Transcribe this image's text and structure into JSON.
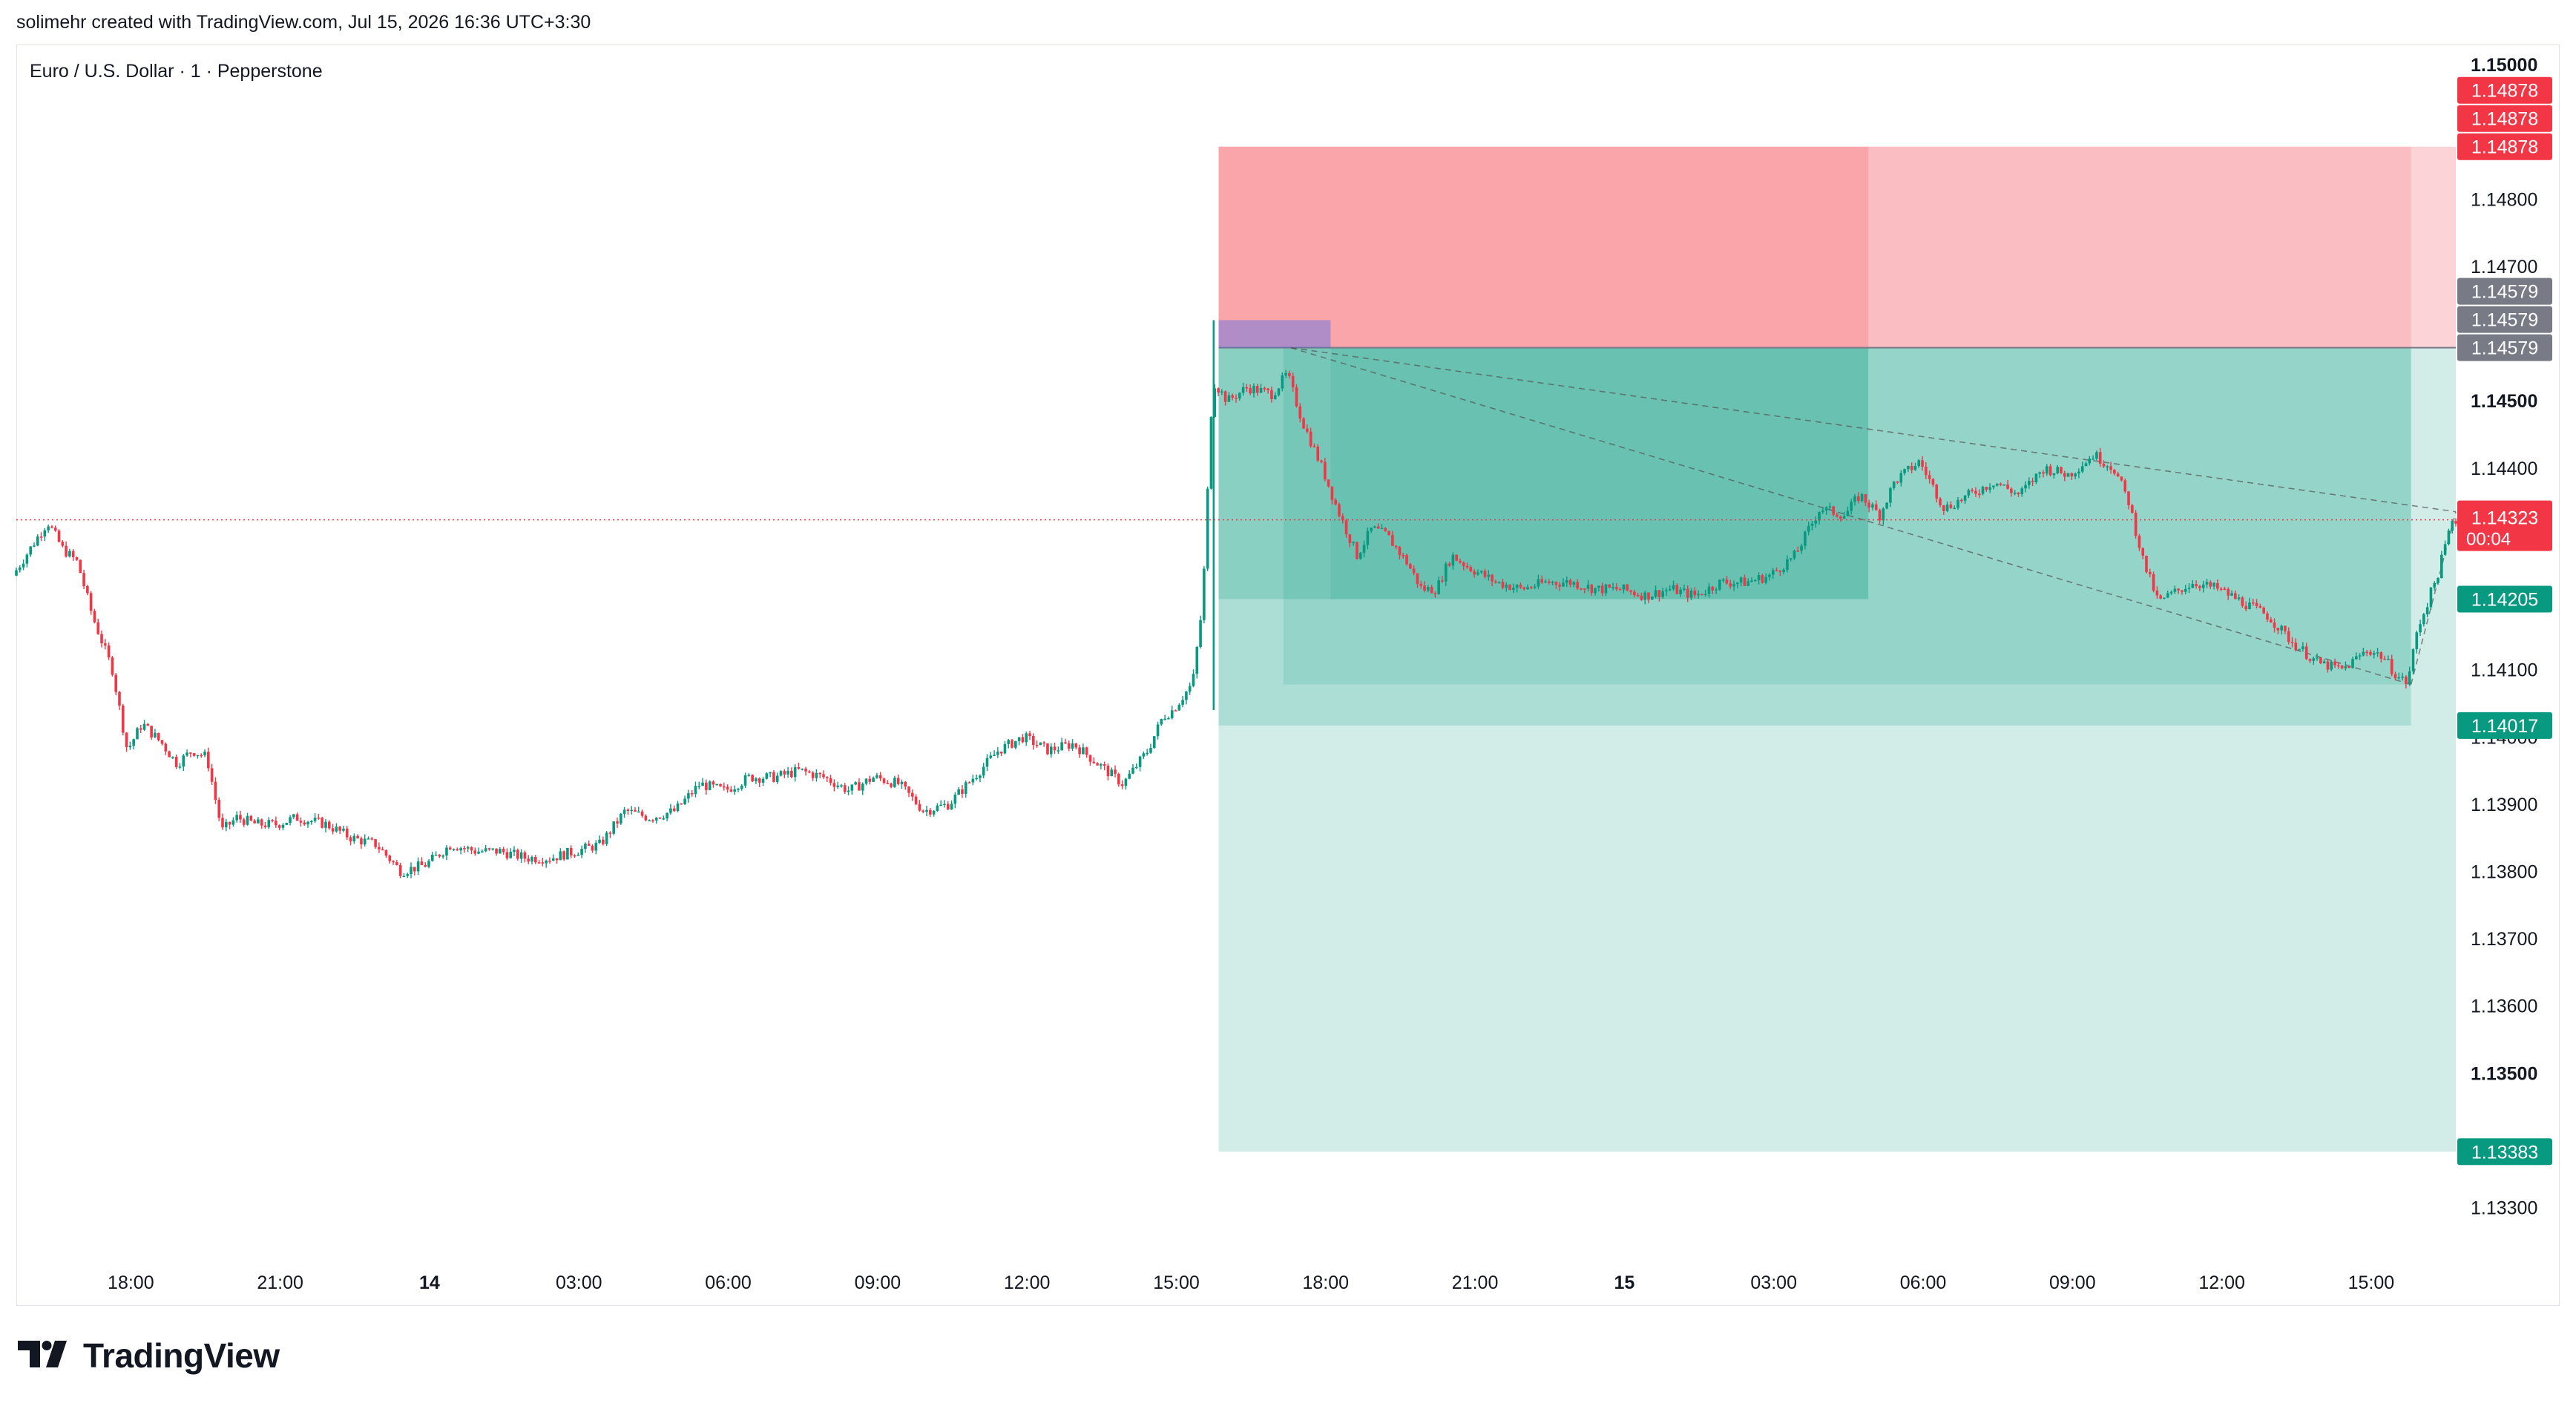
{
  "header": {
    "attribution": "solimehr created with TradingView.com, Jul 15, 2026 16:36 UTC+3:30"
  },
  "symbol_title": "Euro / U.S. Dollar · 1 · Pepperstone",
  "brand": {
    "name": "TradingView"
  },
  "colors": {
    "up": "#089981",
    "down": "#f23645",
    "stop_zone": "#f23645",
    "target_zone": "#089981",
    "grey_label": "#787b86",
    "current_line": "#f23645"
  },
  "chart_data": {
    "type": "candlestick",
    "title": "Euro / U.S. Dollar · 1 · Pepperstone",
    "timeframe": "1",
    "xlabel": "",
    "ylabel": "",
    "x_ticks": [
      {
        "label": "18:00",
        "hours": 1.0,
        "bold": false
      },
      {
        "label": "21:00",
        "hours": 4.0,
        "bold": false
      },
      {
        "label": "14",
        "hours": 7.0,
        "bold": true
      },
      {
        "label": "03:00",
        "hours": 10.0,
        "bold": false
      },
      {
        "label": "06:00",
        "hours": 13.0,
        "bold": false
      },
      {
        "label": "09:00",
        "hours": 16.0,
        "bold": false
      },
      {
        "label": "12:00",
        "hours": 19.0,
        "bold": false
      },
      {
        "label": "15:00",
        "hours": 22.0,
        "bold": false
      },
      {
        "label": "18:00",
        "hours": 25.0,
        "bold": false
      },
      {
        "label": "21:00",
        "hours": 28.0,
        "bold": false
      },
      {
        "label": "15",
        "hours": 31.0,
        "bold": true
      },
      {
        "label": "03:00",
        "hours": 34.0,
        "bold": false
      },
      {
        "label": "06:00",
        "hours": 37.0,
        "bold": false
      },
      {
        "label": "09:00",
        "hours": 40.0,
        "bold": false
      },
      {
        "label": "12:00",
        "hours": 43.0,
        "bold": false
      },
      {
        "label": "15:00",
        "hours": 46.0,
        "bold": false
      }
    ],
    "x_range_hours": [
      -1.3,
      47.7
    ],
    "ylim": [
      1.1322,
      1.1503
    ],
    "y_ticks": [
      {
        "label": "1.15000",
        "value": 1.15,
        "bold": true
      },
      {
        "label": "1.14800",
        "value": 1.148,
        "bold": false
      },
      {
        "label": "1.14700",
        "value": 1.147,
        "bold": false
      },
      {
        "label": "1.14500",
        "value": 1.145,
        "bold": true
      },
      {
        "label": "1.14400",
        "value": 1.144,
        "bold": false
      },
      {
        "label": "1.14100",
        "value": 1.141,
        "bold": false
      },
      {
        "label": "1.14000",
        "value": 1.14,
        "bold": false
      },
      {
        "label": "1.13900",
        "value": 1.139,
        "bold": false
      },
      {
        "label": "1.13800",
        "value": 1.138,
        "bold": false
      },
      {
        "label": "1.13700",
        "value": 1.137,
        "bold": false
      },
      {
        "label": "1.13600",
        "value": 1.136,
        "bold": false
      },
      {
        "label": "1.13500",
        "value": 1.135,
        "bold": true
      },
      {
        "label": "1.13300",
        "value": 1.133,
        "bold": false
      }
    ],
    "price_path": [
      [
        -1.3,
        1.1424
      ],
      [
        -0.6,
        1.1432
      ],
      [
        -0.3,
        1.1428
      ],
      [
        0.0,
        1.1426
      ],
      [
        0.3,
        1.1418
      ],
      [
        0.7,
        1.141
      ],
      [
        1.0,
        1.1398
      ],
      [
        1.3,
        1.1402
      ],
      [
        1.7,
        1.1399
      ],
      [
        2.0,
        1.1396
      ],
      [
        2.3,
        1.1398
      ],
      [
        2.6,
        1.1397
      ],
      [
        2.9,
        1.1386
      ],
      [
        3.2,
        1.1388
      ],
      [
        3.6,
        1.1387
      ],
      [
        4.0,
        1.1387
      ],
      [
        4.4,
        1.1388
      ],
      [
        5.0,
        1.1387
      ],
      [
        5.5,
        1.1385
      ],
      [
        6.0,
        1.1384
      ],
      [
        6.5,
        1.138
      ],
      [
        7.0,
        1.1381
      ],
      [
        7.5,
        1.1384
      ],
      [
        8.0,
        1.1383
      ],
      [
        8.5,
        1.1383
      ],
      [
        9.0,
        1.1382
      ],
      [
        9.5,
        1.1382
      ],
      [
        10.0,
        1.1383
      ],
      [
        10.5,
        1.1384
      ],
      [
        11.0,
        1.1389
      ],
      [
        11.5,
        1.1388
      ],
      [
        12.0,
        1.1389
      ],
      [
        12.5,
        1.1393
      ],
      [
        13.0,
        1.1392
      ],
      [
        13.5,
        1.1394
      ],
      [
        14.0,
        1.1394
      ],
      [
        14.5,
        1.1395
      ],
      [
        15.0,
        1.1394
      ],
      [
        15.5,
        1.1392
      ],
      [
        16.0,
        1.1394
      ],
      [
        16.5,
        1.1393
      ],
      [
        17.0,
        1.1389
      ],
      [
        17.5,
        1.139
      ],
      [
        18.0,
        1.1394
      ],
      [
        18.5,
        1.1398
      ],
      [
        19.0,
        1.14
      ],
      [
        19.5,
        1.1398
      ],
      [
        20.0,
        1.1399
      ],
      [
        20.5,
        1.1396
      ],
      [
        21.0,
        1.1393
      ],
      [
        21.5,
        1.1398
      ],
      [
        21.8,
        1.1403
      ],
      [
        22.0,
        1.1404
      ],
      [
        22.4,
        1.1408
      ],
      [
        22.6,
        1.142
      ],
      [
        22.8,
        1.1453
      ],
      [
        23.1,
        1.145
      ],
      [
        23.5,
        1.1452
      ],
      [
        24.0,
        1.1451
      ],
      [
        24.3,
        1.1454
      ],
      [
        24.6,
        1.1447
      ],
      [
        25.0,
        1.144
      ],
      [
        25.3,
        1.1434
      ],
      [
        25.7,
        1.1427
      ],
      [
        26.0,
        1.1431
      ],
      [
        26.3,
        1.143
      ],
      [
        26.7,
        1.1426
      ],
      [
        27.0,
        1.1422
      ],
      [
        27.3,
        1.1422
      ],
      [
        27.6,
        1.1427
      ],
      [
        28.0,
        1.1425
      ],
      [
        28.5,
        1.1423
      ],
      [
        29.0,
        1.1422
      ],
      [
        29.5,
        1.1423
      ],
      [
        30.0,
        1.1423
      ],
      [
        30.5,
        1.1422
      ],
      [
        31.0,
        1.1422
      ],
      [
        31.5,
        1.1421
      ],
      [
        32.0,
        1.1422
      ],
      [
        32.5,
        1.1421
      ],
      [
        33.0,
        1.1423
      ],
      [
        33.5,
        1.1423
      ],
      [
        34.0,
        1.1424
      ],
      [
        34.5,
        1.1427
      ],
      [
        35.0,
        1.1434
      ],
      [
        35.5,
        1.1433
      ],
      [
        35.8,
        1.1436
      ],
      [
        36.2,
        1.1433
      ],
      [
        36.5,
        1.1438
      ],
      [
        37.0,
        1.1441
      ],
      [
        37.5,
        1.1434
      ],
      [
        38.0,
        1.1436
      ],
      [
        38.5,
        1.1438
      ],
      [
        39.0,
        1.1436
      ],
      [
        39.5,
        1.144
      ],
      [
        40.0,
        1.1439
      ],
      [
        40.5,
        1.1442
      ],
      [
        40.9,
        1.144
      ],
      [
        41.2,
        1.1435
      ],
      [
        41.5,
        1.1426
      ],
      [
        41.8,
        1.142
      ],
      [
        42.0,
        1.1421
      ],
      [
        42.5,
        1.1423
      ],
      [
        43.0,
        1.1422
      ],
      [
        43.5,
        1.142
      ],
      [
        44.0,
        1.1418
      ],
      [
        44.5,
        1.1414
      ],
      [
        45.0,
        1.1411
      ],
      [
        45.5,
        1.141
      ],
      [
        46.0,
        1.1413
      ],
      [
        46.3,
        1.1412
      ],
      [
        46.6,
        1.1409
      ],
      [
        46.8,
        1.1408
      ],
      [
        47.0,
        1.1416
      ],
      [
        47.4,
        1.1424
      ],
      [
        47.7,
        1.14323
      ]
    ],
    "current_price": {
      "label": "1.14323",
      "value": 1.14323,
      "countdown": "00:04"
    },
    "price_labels": [
      {
        "label": "1.14878",
        "value": 1.14878,
        "color": "red",
        "offset": -2
      },
      {
        "label": "1.14878",
        "value": 1.14878,
        "color": "red",
        "offset": -1
      },
      {
        "label": "1.14878",
        "value": 1.14878,
        "color": "red",
        "offset": 0
      },
      {
        "label": "1.14579",
        "value": 1.14579,
        "color": "grey",
        "offset": -2
      },
      {
        "label": "1.14579",
        "value": 1.14579,
        "color": "grey",
        "offset": -1
      },
      {
        "label": "1.14579",
        "value": 1.14579,
        "color": "grey",
        "offset": 0
      },
      {
        "label": "1.14205",
        "value": 1.14205,
        "color": "green",
        "offset": 0
      },
      {
        "label": "1.14017",
        "value": 1.14017,
        "color": "green",
        "offset": 0
      },
      {
        "label": "1.13383",
        "value": 1.13383,
        "color": "green",
        "offset": 0
      }
    ],
    "positions": [
      {
        "name": "short-position-1",
        "entry_hours": 22.85,
        "end_hours": 47.7,
        "entry": 1.14579,
        "stop": 1.14878,
        "target": 1.13383,
        "stop_opacity": 0.22,
        "target_opacity": 0.18
      },
      {
        "name": "short-position-2",
        "entry_hours": 22.85,
        "end_hours": 46.8,
        "entry": 1.14579,
        "stop": 1.14878,
        "target": 1.14017,
        "stop_opacity": 0.14,
        "target_opacity": 0.18
      },
      {
        "name": "short-position-3",
        "entry_hours": 22.85,
        "end_hours": 35.9,
        "entry": 1.14579,
        "stop": 1.14878,
        "target": 1.14205,
        "stop_opacity": 0.18,
        "target_opacity": 0.22
      },
      {
        "name": "short-position-4",
        "entry_hours": 24.15,
        "end_hours": 46.8,
        "entry": 1.14579,
        "stop": 1.14579,
        "target": 1.14078,
        "stop_opacity": 0.0,
        "target_opacity": 0.14
      },
      {
        "name": "short-position-5",
        "entry_hours": 25.1,
        "end_hours": 35.9,
        "entry": 1.14579,
        "stop": 1.14579,
        "target": 1.14205,
        "stop_opacity": 0.0,
        "target_opacity": 0.12
      }
    ],
    "entry_marker": {
      "from_hours": 22.85,
      "to_hours": 25.1,
      "from_value": 1.1462,
      "to_value": 1.14579
    },
    "trend_lines": [
      [
        [
          24.3,
          1.14579
        ],
        [
          47.7,
          1.14335
        ]
      ],
      [
        [
          24.3,
          1.14579
        ],
        [
          46.8,
          1.14078
        ]
      ],
      [
        [
          46.8,
          1.14078
        ],
        [
          47.7,
          1.14335
        ]
      ]
    ]
  }
}
